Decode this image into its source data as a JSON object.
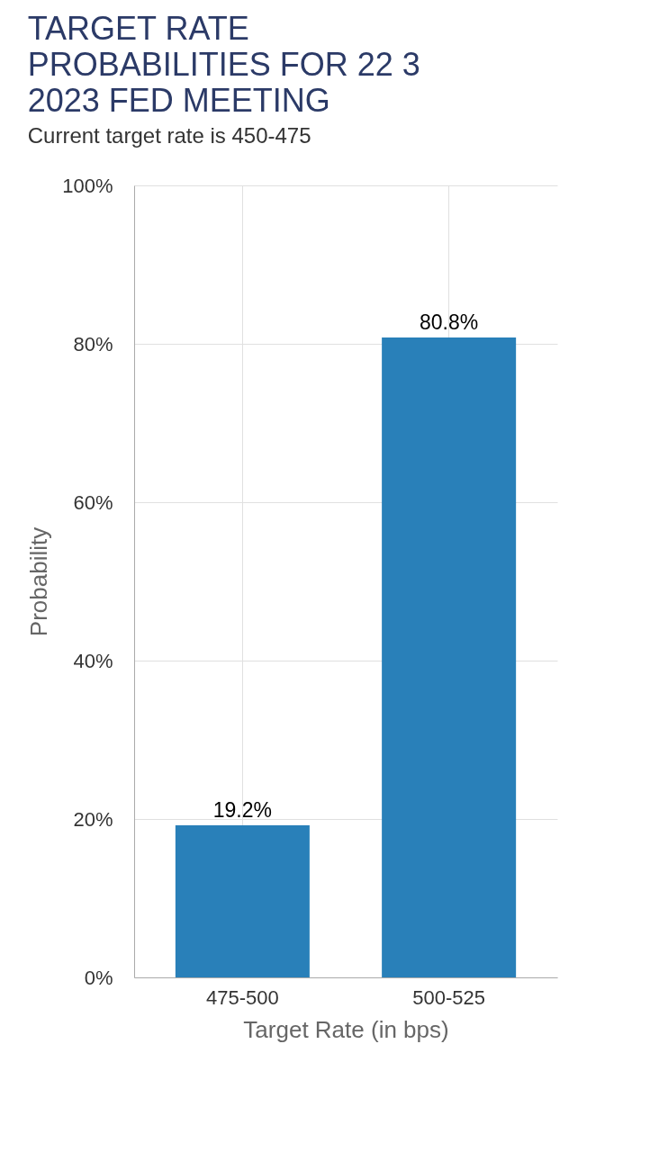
{
  "chart_data": {
    "type": "bar",
    "title": "TARGET RATE PROBABILITIES FOR 22 3 2023 FED MEETING",
    "subtitle": "Current target rate is 450-475",
    "xlabel": "Target Rate (in bps)",
    "ylabel": "Probability",
    "categories": [
      "475-500",
      "500-525"
    ],
    "series": [
      {
        "color": "#2980b9",
        "values": [
          19.2,
          80.8
        ],
        "value_labels": [
          "19.2%",
          "80.8%"
        ]
      }
    ],
    "ylim": [
      0,
      100
    ],
    "yticks": [
      {
        "value": 0,
        "label": "0%"
      },
      {
        "value": 20,
        "label": "20%"
      },
      {
        "value": 40,
        "label": "40%"
      },
      {
        "value": 60,
        "label": "60%"
      },
      {
        "value": 80,
        "label": "80%"
      },
      {
        "value": 100,
        "label": "100%"
      }
    ],
    "grid": true
  }
}
